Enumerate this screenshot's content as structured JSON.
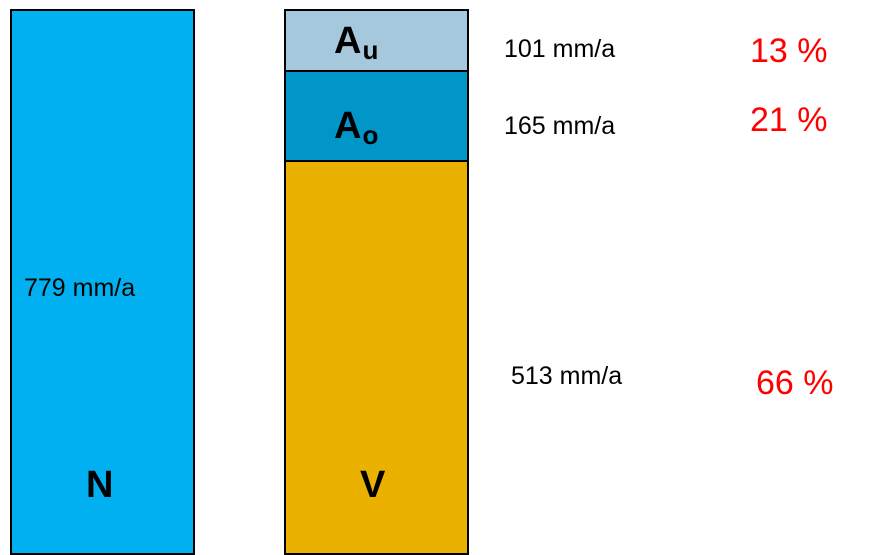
{
  "colors": {
    "precipitation": "#00b0f0",
    "runoff_lower": "#a6c8dc",
    "runoff_upper": "#0096c8",
    "evaporation": "#ebb100",
    "percent": "#ff0000",
    "outline": "#000000"
  },
  "precipitation": {
    "symbol": "N",
    "value": "779 mm/a"
  },
  "components": [
    {
      "symbol_base": "A",
      "symbol_sub": "u",
      "value": "101 mm/a",
      "percent": "13 %"
    },
    {
      "symbol_base": "A",
      "symbol_sub": "o",
      "value": "165 mm/a",
      "percent": "21 %"
    },
    {
      "symbol_base": "V",
      "symbol_sub": "",
      "value": "513 mm/a",
      "percent": "66 %"
    }
  ]
}
